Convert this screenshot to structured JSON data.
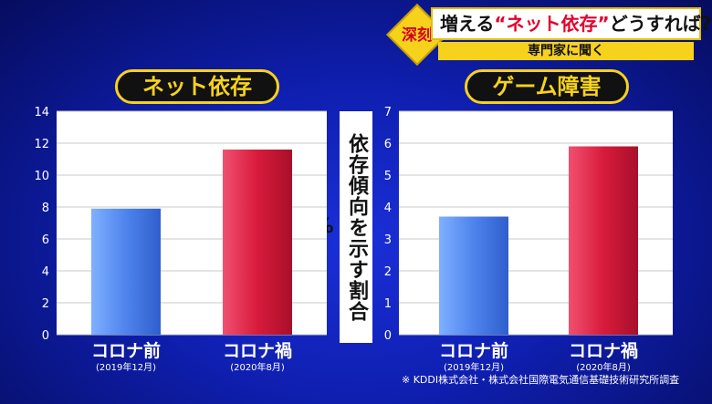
{
  "caption": {
    "badge": "深刻",
    "headline_prefix": "増える",
    "headline_highlight": "“ネット依存”",
    "headline_suffix": "どうすれば?",
    "subhead": "専門家に聞く"
  },
  "y_axis_label": "依存傾向を示す割合(%)",
  "source": "※ KDDI株式会社・株式会社国際電気通信基礎技術研究所調査",
  "colors": {
    "blue_bar": "#4e83ec",
    "red_bar": "#d81b3c",
    "title_yellow": "#f7d21c"
  },
  "chart_data": [
    {
      "type": "bar",
      "title": "ネット依存",
      "categories": [
        "コロナ前",
        "コロナ禍"
      ],
      "category_sublabels": [
        "(2019年12月)",
        "(2020年8月)"
      ],
      "values": [
        7.9,
        11.6
      ],
      "ylim": [
        0,
        14
      ],
      "yticks": [
        0,
        2,
        4,
        6,
        8,
        10,
        12,
        14
      ],
      "ylabel": "依存傾向を示す割合(%)",
      "grid": true
    },
    {
      "type": "bar",
      "title": "ゲーム障害",
      "categories": [
        "コロナ前",
        "コロナ禍"
      ],
      "category_sublabels": [
        "(2019年12月)",
        "(2020年8月)"
      ],
      "values": [
        3.7,
        5.9
      ],
      "ylim": [
        0,
        7
      ],
      "yticks": [
        0,
        1,
        2,
        3,
        4,
        5,
        6,
        7
      ],
      "ylabel": "依存傾向を示す割合(%)",
      "grid": true
    }
  ]
}
